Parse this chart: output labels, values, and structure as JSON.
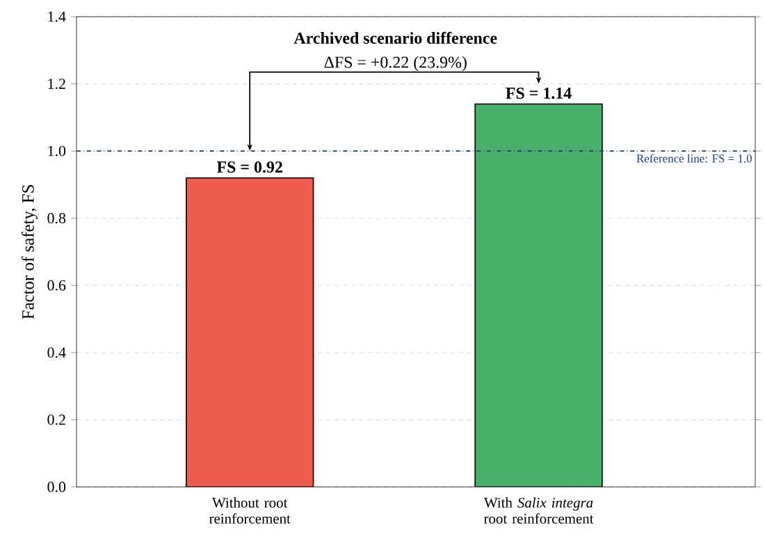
{
  "chart_data": {
    "type": "bar",
    "title": "Archived scenario difference",
    "subtitle": "ΔFS = +0.22 (23.9%)",
    "ylabel": "Factor of safety, FS",
    "categories": [
      "Without root reinforcement",
      "With *Salix integra* root reinforcement"
    ],
    "values": [
      0.92,
      1.14
    ],
    "colors": [
      "#ee5b4f",
      "#48b06b"
    ],
    "value_labels": [
      "FS = 0.92",
      "FS = 1.14"
    ],
    "ylim": [
      0,
      1.4
    ],
    "yticks": [
      {
        "value": 0,
        "label": "0.0"
      },
      0.2,
      0.4,
      0.6,
      0.8,
      {
        "value": 1.0,
        "label": "1.0"
      },
      1.2,
      1.4
    ],
    "grid": "y",
    "ref_lines": [
      {
        "axis": "y",
        "value": 1.0,
        "label": "Reference line: FS = 1.0",
        "color": "#1f3b80",
        "line_style": "dashdot"
      }
    ]
  }
}
